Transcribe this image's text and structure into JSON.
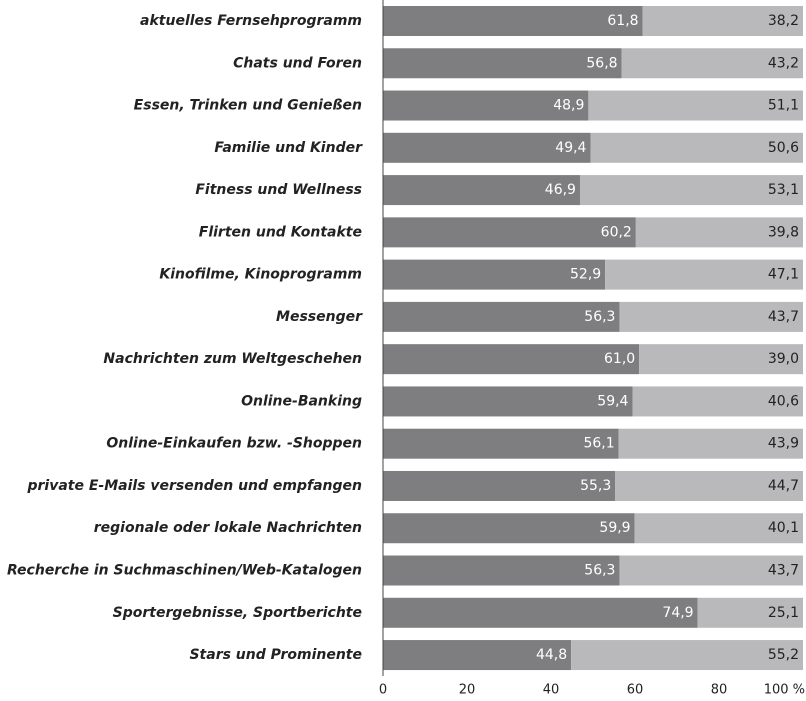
{
  "chart_data": {
    "type": "stacked-bar-horizontal",
    "categories": [
      "aktuelles Fernsehprogramm",
      "Chats und Foren",
      "Essen, Trinken und Genießen",
      "Familie und Kinder",
      "Fitness und Wellness",
      "Flirten und Kontakte",
      "Kinofilme, Kinoprogramm",
      "Messenger",
      "Nachrichten zum Weltgeschehen",
      "Online-Banking",
      "Online-Einkaufen bzw. -Shoppen",
      "private E-Mails versenden und empfangen",
      "regionale oder lokale Nachrichten",
      "Recherche in Suchmaschinen/Web-Katalogen",
      "Sportergebnisse, Sportberichte",
      "Stars und Prominente"
    ],
    "series": [
      {
        "color": "#7e7e80",
        "values": [
          61.8,
          56.8,
          48.9,
          49.4,
          46.9,
          60.2,
          52.9,
          56.3,
          61.0,
          59.4,
          56.1,
          55.3,
          59.9,
          56.3,
          74.9,
          44.8
        ],
        "value_labels": [
          "61,8",
          "56,8",
          "48,9",
          "49,4",
          "46,9",
          "60,2",
          "52,9",
          "56,3",
          "61,0",
          "59,4",
          "56,1",
          "55,3",
          "59,9",
          "56,3",
          "74,9",
          "44,8"
        ]
      },
      {
        "color": "#b9b9bb",
        "values": [
          38.2,
          43.2,
          51.1,
          50.6,
          53.1,
          39.8,
          47.1,
          43.7,
          39.0,
          40.6,
          43.9,
          44.7,
          40.1,
          43.7,
          25.1,
          55.2
        ],
        "value_labels": [
          "38,2",
          "43,2",
          "51,1",
          "50,6",
          "53,1",
          "39,8",
          "47,1",
          "43,7",
          "39,0",
          "40,6",
          "43,9",
          "44,7",
          "40,1",
          "43,7",
          "25,1",
          "55,2"
        ]
      }
    ],
    "xlim": [
      0,
      100
    ],
    "xticks": [
      0,
      20,
      40,
      60,
      80,
      {
        "value": 100,
        "label": "100 %"
      }
    ]
  }
}
